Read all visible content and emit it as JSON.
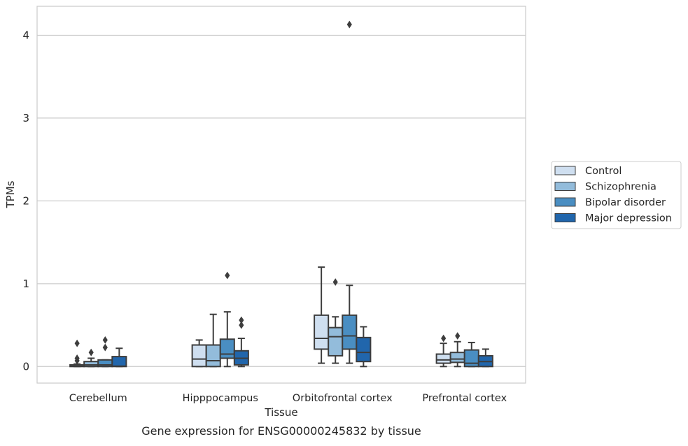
{
  "chart_data": {
    "type": "box",
    "caption": "Gene expression for ENSG00000245832 by tissue",
    "xlabel": "Tissue",
    "ylabel": "TPMs",
    "ylim": [
      -0.2,
      4.35
    ],
    "yticks": [
      0,
      1,
      2,
      3,
      4
    ],
    "grid": "horizontal",
    "legend_position": "right",
    "categories": [
      "Cerebellum",
      "Hipppocampus",
      "Orbitofrontal cortex",
      "Prefrontal cortex"
    ],
    "series": [
      {
        "name": "Control",
        "color": "#cfdff0",
        "boxes": [
          {
            "whislo": 0.0,
            "q1": 0.0,
            "med": 0.005,
            "q3": 0.02,
            "whishi": 0.03,
            "fliers": [
              0.07,
              0.1,
              0.28
            ]
          },
          {
            "whislo": 0.0,
            "q1": 0.0,
            "med": 0.09,
            "q3": 0.26,
            "whishi": 0.32,
            "fliers": []
          },
          {
            "whislo": 0.04,
            "q1": 0.21,
            "med": 0.34,
            "q3": 0.62,
            "whishi": 1.2,
            "fliers": []
          },
          {
            "whislo": 0.0,
            "q1": 0.04,
            "med": 0.08,
            "q3": 0.15,
            "whishi": 0.28,
            "fliers": [
              0.34
            ]
          }
        ]
      },
      {
        "name": "Schizophrenia",
        "color": "#93bcdb",
        "boxes": [
          {
            "whislo": 0.0,
            "q1": 0.0,
            "med": 0.02,
            "q3": 0.06,
            "whishi": 0.1,
            "fliers": [
              0.17
            ]
          },
          {
            "whislo": 0.0,
            "q1": 0.0,
            "med": 0.07,
            "q3": 0.26,
            "whishi": 0.63,
            "fliers": []
          },
          {
            "whislo": 0.04,
            "q1": 0.13,
            "med": 0.36,
            "q3": 0.47,
            "whishi": 0.6,
            "fliers": [
              1.02
            ]
          },
          {
            "whislo": 0.0,
            "q1": 0.05,
            "med": 0.09,
            "q3": 0.17,
            "whishi": 0.3,
            "fliers": [
              0.37
            ]
          }
        ]
      },
      {
        "name": "Bipolar disorder",
        "color": "#4a8ec2",
        "boxes": [
          {
            "whislo": 0.0,
            "q1": 0.0,
            "med": 0.02,
            "q3": 0.08,
            "whishi": 0.08,
            "fliers": [
              0.23,
              0.32
            ]
          },
          {
            "whislo": 0.0,
            "q1": 0.1,
            "med": 0.15,
            "q3": 0.33,
            "whishi": 0.66,
            "fliers": [
              1.1
            ]
          },
          {
            "whislo": 0.04,
            "q1": 0.21,
            "med": 0.37,
            "q3": 0.62,
            "whishi": 0.98,
            "fliers": [
              4.13
            ]
          },
          {
            "whislo": 0.0,
            "q1": 0.0,
            "med": 0.04,
            "q3": 0.2,
            "whishi": 0.29,
            "fliers": []
          }
        ]
      },
      {
        "name": "Major depression",
        "color": "#2166ac",
        "boxes": [
          {
            "whislo": 0.0,
            "q1": 0.0,
            "med": 0.005,
            "q3": 0.12,
            "whishi": 0.22,
            "fliers": []
          },
          {
            "whislo": 0.0,
            "q1": 0.02,
            "med": 0.1,
            "q3": 0.19,
            "whishi": 0.34,
            "fliers": [
              0.5,
              0.56
            ]
          },
          {
            "whislo": 0.0,
            "q1": 0.06,
            "med": 0.17,
            "q3": 0.35,
            "whishi": 0.48,
            "fliers": []
          },
          {
            "whislo": 0.0,
            "q1": 0.0,
            "med": 0.06,
            "q3": 0.13,
            "whishi": 0.21,
            "fliers": []
          }
        ]
      }
    ]
  },
  "colors": {
    "frame": "#cccccc",
    "grid": "#cccccc",
    "box_edge": "#3d3d3d",
    "text": "#262626"
  }
}
